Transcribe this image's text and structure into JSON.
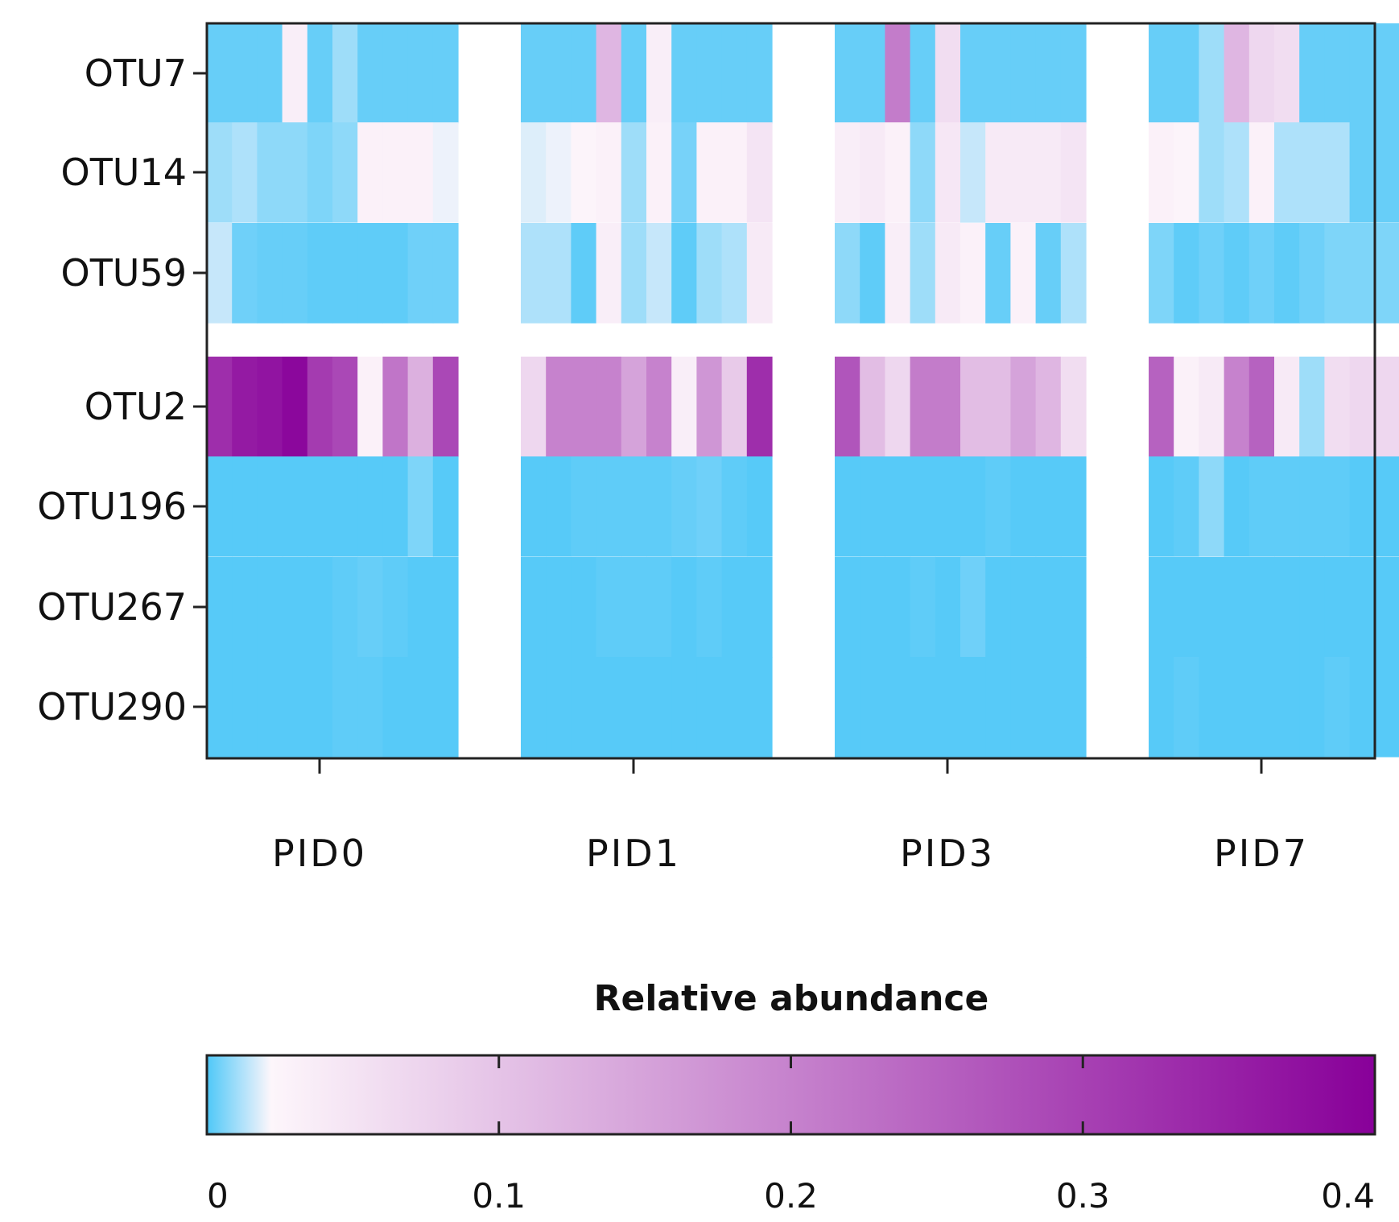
{
  "chart_data": {
    "type": "heatmap",
    "title": "",
    "xlabel": "",
    "ylabel": "",
    "rows": [
      "OTU7",
      "OTU14",
      "OTU59",
      "OTU2",
      "OTU196",
      "OTU267",
      "OTU290"
    ],
    "groups": [
      {
        "name": "PID0",
        "values": [
          [
            0.003,
            0.003,
            0.003,
            0.035,
            0.003,
            0.01,
            0.003,
            0.003,
            0.003,
            0.003
          ],
          [
            0.01,
            0.012,
            0.008,
            0.008,
            0.006,
            0.008,
            0.03,
            0.03,
            0.03,
            0.02
          ],
          [
            0.015,
            0.004,
            0.003,
            0.003,
            0.002,
            0.002,
            0.002,
            0.002,
            0.004,
            0.004
          ],
          [
            0.33,
            0.36,
            0.37,
            0.39,
            0.31,
            0.29,
            0.03,
            0.22,
            0.13,
            0.29
          ],
          [
            0.001,
            0.001,
            0.001,
            0.001,
            0.001,
            0.001,
            0.001,
            0.001,
            0.006,
            0.001
          ],
          [
            0.001,
            0.001,
            0.001,
            0.001,
            0.001,
            0.002,
            0.003,
            0.002,
            0.001,
            0.001
          ],
          [
            0.001,
            0.001,
            0.001,
            0.001,
            0.001,
            0.002,
            0.002,
            0.001,
            0.001,
            0.001
          ]
        ]
      },
      {
        "name": "PID1",
        "values": [
          [
            0.003,
            0.003,
            0.003,
            0.12,
            0.003,
            0.035,
            0.003,
            0.003,
            0.003,
            0.003
          ],
          [
            0.018,
            0.02,
            0.025,
            0.03,
            0.01,
            0.03,
            0.005,
            0.03,
            0.03,
            0.05
          ],
          [
            0.012,
            0.012,
            0.002,
            0.035,
            0.01,
            0.015,
            0.002,
            0.01,
            0.012,
            0.04
          ],
          [
            0.07,
            0.2,
            0.2,
            0.2,
            0.15,
            0.2,
            0.035,
            0.17,
            0.09,
            0.33
          ],
          [
            0.001,
            0.001,
            0.002,
            0.002,
            0.002,
            0.002,
            0.003,
            0.004,
            0.002,
            0.001
          ],
          [
            0.001,
            0.001,
            0.001,
            0.002,
            0.002,
            0.002,
            0.001,
            0.002,
            0.001,
            0.001
          ],
          [
            0.001,
            0.001,
            0.001,
            0.001,
            0.001,
            0.001,
            0.001,
            0.001,
            0.001,
            0.001
          ]
        ]
      },
      {
        "name": "PID3",
        "values": [
          [
            0.003,
            0.003,
            0.21,
            0.003,
            0.06,
            0.003,
            0.003,
            0.003,
            0.003,
            0.003
          ],
          [
            0.035,
            0.04,
            0.03,
            0.008,
            0.045,
            0.015,
            0.04,
            0.04,
            0.04,
            0.05
          ],
          [
            0.008,
            0.002,
            0.035,
            0.01,
            0.04,
            0.03,
            0.003,
            0.03,
            0.003,
            0.012
          ],
          [
            0.27,
            0.11,
            0.07,
            0.21,
            0.21,
            0.11,
            0.11,
            0.15,
            0.12,
            0.06
          ],
          [
            0.001,
            0.001,
            0.001,
            0.001,
            0.001,
            0.001,
            0.002,
            0.001,
            0.001,
            0.001
          ],
          [
            0.001,
            0.001,
            0.001,
            0.002,
            0.001,
            0.004,
            0.001,
            0.001,
            0.001,
            0.001
          ],
          [
            0.001,
            0.001,
            0.001,
            0.001,
            0.001,
            0.001,
            0.001,
            0.001,
            0.001,
            0.001
          ]
        ]
      },
      {
        "name": "PID7",
        "values": [
          [
            0.003,
            0.003,
            0.01,
            0.12,
            0.07,
            0.06,
            0.003,
            0.003,
            0.003,
            0.003
          ],
          [
            0.03,
            0.025,
            0.01,
            0.012,
            0.03,
            0.012,
            0.012,
            0.012,
            0.003,
            0.003
          ],
          [
            0.006,
            0.002,
            0.004,
            0.002,
            0.004,
            0.002,
            0.004,
            0.006,
            0.006,
            0.006
          ],
          [
            0.25,
            0.03,
            0.04,
            0.2,
            0.25,
            0.04,
            0.01,
            0.06,
            0.07,
            0.07
          ],
          [
            0.001,
            0.002,
            0.008,
            0.001,
            0.002,
            0.002,
            0.002,
            0.002,
            0.001,
            0.001
          ],
          [
            0.001,
            0.001,
            0.001,
            0.001,
            0.001,
            0.001,
            0.001,
            0.001,
            0.001,
            0.001
          ],
          [
            0.001,
            0.002,
            0.001,
            0.001,
            0.001,
            0.001,
            0.001,
            0.002,
            0.001,
            0.001
          ]
        ]
      }
    ],
    "colorbar": {
      "title": "Relative abundance",
      "min": 0,
      "max": 0.4,
      "ticks": [
        "0",
        "0.1",
        "0.2",
        "0.3",
        "0.4"
      ],
      "colors": [
        "#4fc8f8",
        "#fdf6fb",
        "#880099"
      ]
    }
  }
}
